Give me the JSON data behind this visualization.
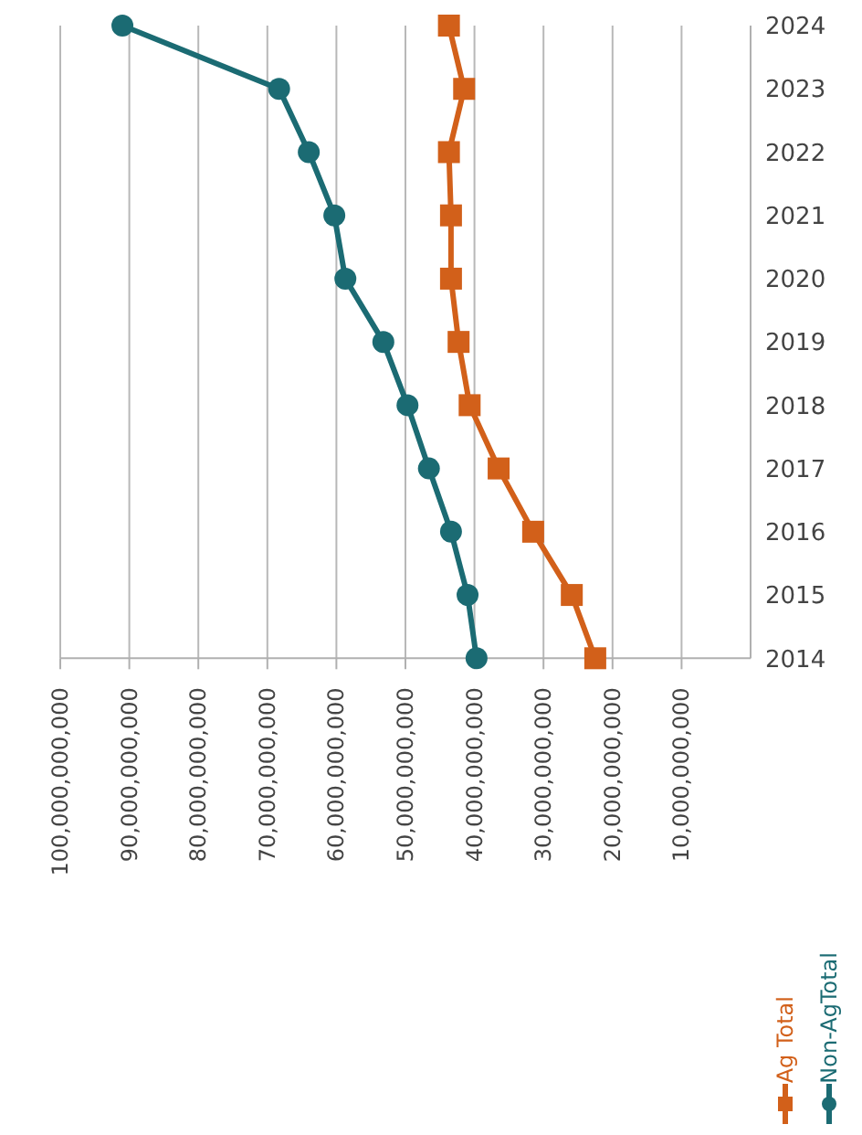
{
  "chart_data": {
    "type": "line",
    "orientation": "horizontal",
    "categories": [
      "2024",
      "2023",
      "2022",
      "2021",
      "2020",
      "2019",
      "2018",
      "2017",
      "2016",
      "2015",
      "2014"
    ],
    "series": [
      {
        "name": "Ag Total",
        "color": "#d2601a",
        "marker": "square",
        "values": [
          43700000000,
          41500000000,
          43700000000,
          43400000000,
          43400000000,
          42300000000,
          40700000000,
          36500000000,
          31500000000,
          25900000000,
          22500000000
        ]
      },
      {
        "name": "Non-AgTotal",
        "color": "#1b6b73",
        "marker": "circle",
        "values": [
          91000000000,
          68300000000,
          64000000000,
          60300000000,
          58700000000,
          53200000000,
          49700000000,
          46600000000,
          43400000000,
          41000000000,
          39700000000
        ]
      }
    ],
    "xlim": [
      100000000000,
      0
    ],
    "xticks": [
      {
        "value": 100000000000,
        "label": "100,000,000,000"
      },
      {
        "value": 90000000000,
        "label": "90,000,000,000"
      },
      {
        "value": 80000000000,
        "label": "80,000,000,000"
      },
      {
        "value": 70000000000,
        "label": "70,000,000,000"
      },
      {
        "value": 60000000000,
        "label": "60,000,000,000"
      },
      {
        "value": 50000000000,
        "label": "50,000,000,000"
      },
      {
        "value": 40000000000,
        "label": "40,000,000,000"
      },
      {
        "value": 30000000000,
        "label": "30,000,000,000"
      },
      {
        "value": 20000000000,
        "label": "20,000,000,000"
      },
      {
        "value": 10000000000,
        "label": "10,000,000,000"
      }
    ],
    "grid": "x",
    "legend": "bottom right"
  }
}
